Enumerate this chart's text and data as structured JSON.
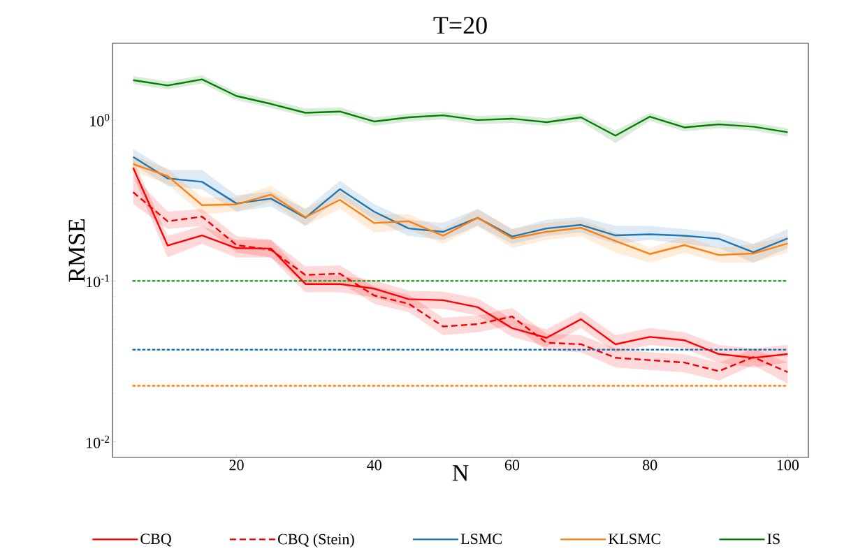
{
  "chart_data": {
    "type": "line",
    "title": "T=20",
    "xlabel": "N",
    "ylabel": "RMSE",
    "x": [
      5,
      10,
      15,
      20,
      25,
      30,
      35,
      40,
      45,
      50,
      55,
      60,
      65,
      70,
      75,
      80,
      85,
      90,
      95,
      100
    ],
    "series": [
      {
        "name": "CBQ",
        "color": "#ff0000",
        "line_style": "solid",
        "values": [
          0.505,
          0.166,
          0.192,
          0.16,
          0.159,
          0.0957,
          0.0957,
          0.0896,
          0.0771,
          0.0759,
          0.0687,
          0.0509,
          0.0443,
          0.0578,
          0.0404,
          0.0449,
          0.0428,
          0.0351,
          0.0333,
          0.0351
        ],
        "lower": [
          0.45,
          0.14,
          0.17,
          0.14,
          0.14,
          0.085,
          0.085,
          0.079,
          0.068,
          0.067,
          0.061,
          0.045,
          0.039,
          0.051,
          0.036,
          0.04,
          0.038,
          0.031,
          0.029,
          0.031
        ],
        "upper": [
          0.57,
          0.19,
          0.22,
          0.18,
          0.18,
          0.108,
          0.108,
          0.101,
          0.087,
          0.086,
          0.078,
          0.058,
          0.05,
          0.065,
          0.046,
          0.051,
          0.048,
          0.04,
          0.038,
          0.04
        ]
      },
      {
        "name": "CBQ (Stein)",
        "color": "#f50000",
        "line_style": "dashed",
        "values": [
          0.356,
          0.235,
          0.251,
          0.167,
          0.156,
          0.109,
          0.111,
          0.0811,
          0.0722,
          0.0521,
          0.0539,
          0.0601,
          0.0413,
          0.0404,
          0.0333,
          0.0322,
          0.0311,
          0.0275,
          0.0336,
          0.0271
        ],
        "lower": [
          0.3,
          0.21,
          0.22,
          0.15,
          0.14,
          0.096,
          0.098,
          0.072,
          0.064,
          0.046,
          0.048,
          0.053,
          0.037,
          0.036,
          0.029,
          0.028,
          0.027,
          0.024,
          0.03,
          0.023
        ],
        "upper": [
          0.45,
          0.27,
          0.28,
          0.19,
          0.18,
          0.123,
          0.125,
          0.092,
          0.082,
          0.059,
          0.061,
          0.068,
          0.047,
          0.046,
          0.038,
          0.036,
          0.035,
          0.031,
          0.038,
          0.031
        ]
      },
      {
        "name": "LSMC",
        "color": "#1f77b4",
        "line_style": "solid",
        "values": [
          0.59,
          0.434,
          0.413,
          0.303,
          0.325,
          0.247,
          0.372,
          0.269,
          0.212,
          0.202,
          0.247,
          0.189,
          0.212,
          0.223,
          0.192,
          0.195,
          0.191,
          0.183,
          0.151,
          0.184
        ],
        "lower": [
          0.53,
          0.39,
          0.37,
          0.27,
          0.29,
          0.22,
          0.33,
          0.24,
          0.19,
          0.18,
          0.22,
          0.17,
          0.19,
          0.2,
          0.17,
          0.18,
          0.17,
          0.16,
          0.13,
          0.16
        ],
        "upper": [
          0.66,
          0.49,
          0.49,
          0.34,
          0.36,
          0.28,
          0.42,
          0.3,
          0.24,
          0.23,
          0.28,
          0.21,
          0.24,
          0.25,
          0.22,
          0.22,
          0.21,
          0.2,
          0.17,
          0.21
        ]
      },
      {
        "name": "KLSMC",
        "color": "#ff7f0e",
        "line_style": "solid",
        "values": [
          0.533,
          0.449,
          0.296,
          0.299,
          0.344,
          0.249,
          0.319,
          0.229,
          0.235,
          0.191,
          0.247,
          0.184,
          0.202,
          0.214,
          0.177,
          0.147,
          0.167,
          0.145,
          0.148,
          0.171
        ],
        "lower": [
          0.48,
          0.4,
          0.26,
          0.27,
          0.31,
          0.22,
          0.28,
          0.2,
          0.21,
          0.17,
          0.22,
          0.16,
          0.18,
          0.19,
          0.15,
          0.13,
          0.15,
          0.13,
          0.13,
          0.15
        ],
        "upper": [
          0.6,
          0.5,
          0.33,
          0.33,
          0.39,
          0.28,
          0.36,
          0.26,
          0.26,
          0.21,
          0.28,
          0.21,
          0.23,
          0.24,
          0.2,
          0.16,
          0.19,
          0.16,
          0.17,
          0.19
        ]
      },
      {
        "name": "IS",
        "color": "#008000",
        "line_style": "solid",
        "values": [
          1.77,
          1.64,
          1.79,
          1.41,
          1.26,
          1.11,
          1.13,
          0.98,
          1.04,
          1.07,
          1.0,
          1.02,
          0.97,
          1.04,
          0.8,
          1.05,
          0.9,
          0.94,
          0.91,
          0.84
        ],
        "lower": [
          1.67,
          1.55,
          1.69,
          1.33,
          1.19,
          1.05,
          1.07,
          0.92,
          0.98,
          1.01,
          0.94,
          0.96,
          0.92,
          0.98,
          0.72,
          0.99,
          0.85,
          0.89,
          0.86,
          0.79
        ],
        "upper": [
          1.88,
          1.74,
          1.9,
          1.49,
          1.34,
          1.18,
          1.2,
          1.04,
          1.1,
          1.13,
          1.06,
          1.08,
          1.03,
          1.1,
          0.86,
          1.11,
          0.95,
          1.0,
          0.96,
          0.89
        ]
      }
    ],
    "ref_lines": [
      {
        "axis": "y",
        "value": 0.1,
        "color": "#2ca02c",
        "line_style": "dotted"
      },
      {
        "axis": "y",
        "value": 0.0374,
        "color": "#1f77b4",
        "line_style": "dotted"
      },
      {
        "axis": "y",
        "value": 0.0223,
        "color": "#ff7f0e",
        "line_style": "dotted"
      }
    ],
    "xlim": [
      2,
      103
    ],
    "ylim": [
      0.008,
      3
    ],
    "xticks": [
      20,
      40,
      60,
      80,
      100
    ],
    "yticks": [
      {
        "value": 0.01,
        "label": "10$^{-2}$"
      },
      {
        "value": 0.1,
        "label": "10$^{-1}$"
      },
      {
        "value": 1,
        "label": "10$^{0}$"
      }
    ],
    "log": "y",
    "grid": false,
    "legend": "bottom",
    "marker": "none"
  }
}
